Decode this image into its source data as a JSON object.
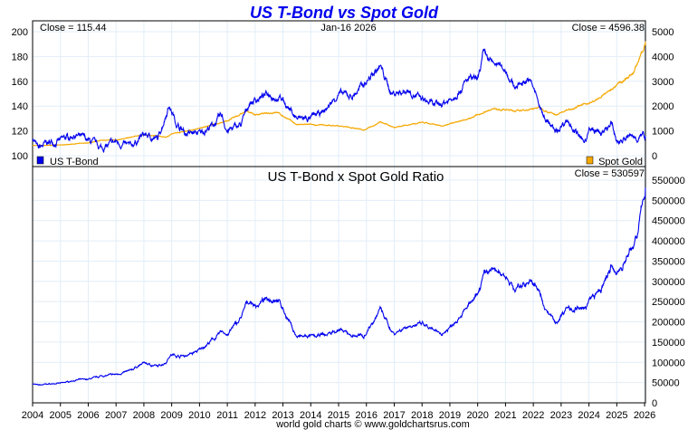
{
  "chart_data": [
    {
      "type": "line",
      "title": "US T-Bond vs Spot Gold",
      "date_label": "Jan-16  2026",
      "left_close": "Close = 115.44",
      "right_close": "Close = 4596.38",
      "left_ticks": [
        "100",
        "120",
        "140",
        "160",
        "180",
        "200"
      ],
      "right_ticks": [
        "0",
        "1000",
        "2000",
        "3000",
        "4000",
        "5000"
      ],
      "ylim_left": [
        100,
        200
      ],
      "ylim_right": [
        0,
        5000
      ],
      "series": [
        {
          "name": "US T-Bond",
          "color": "#0000ee",
          "axis": "left",
          "x": [
            2004.0,
            2004.2,
            2004.5,
            2005.0,
            2005.5,
            2006.0,
            2006.5,
            2007.0,
            2007.5,
            2008.0,
            2008.5,
            2008.9,
            2009.2,
            2009.5,
            2010.0,
            2010.5,
            2010.8,
            2011.0,
            2011.5,
            2011.8,
            2012.5,
            2013.0,
            2013.5,
            2014.0,
            2014.5,
            2015.0,
            2015.5,
            2016.0,
            2016.5,
            2016.9,
            2017.5,
            2018.0,
            2018.5,
            2019.0,
            2019.7,
            2020.0,
            2020.2,
            2020.5,
            2021.0,
            2021.3,
            2021.8,
            2022.0,
            2022.3,
            2022.8,
            2023.2,
            2023.8,
            2024.0,
            2024.5,
            2024.8,
            2025.0,
            2025.5,
            2026.05
          ],
          "values": [
            115,
            105,
            110,
            112,
            117,
            112,
            106,
            111,
            107,
            117,
            113,
            141,
            125,
            118,
            118,
            125,
            132,
            120,
            125,
            143,
            150,
            145,
            130,
            130,
            136,
            150,
            148,
            160,
            172,
            150,
            153,
            145,
            140,
            145,
            162,
            160,
            182,
            175,
            170,
            155,
            162,
            155,
            135,
            118,
            130,
            110,
            120,
            118,
            125,
            112,
            115,
            115.44
          ]
        },
        {
          "name": "Spot Gold",
          "color": "#f5a800",
          "axis": "right",
          "x": [
            2004.0,
            2005.0,
            2006.0,
            2006.5,
            2007.0,
            2008.0,
            2008.8,
            2009.0,
            2010.0,
            2011.0,
            2011.7,
            2012.0,
            2012.8,
            2013.5,
            2014.0,
            2015.0,
            2015.9,
            2016.5,
            2017.0,
            2018.0,
            2018.7,
            2019.0,
            2019.7,
            2020.5,
            2021.0,
            2021.5,
            2022.2,
            2022.8,
            2023.5,
            2024.2,
            2024.8,
            2025.2,
            2025.6,
            2025.9,
            2026.05
          ],
          "values": [
            410,
            430,
            520,
            630,
            630,
            850,
            750,
            880,
            1100,
            1400,
            1800,
            1650,
            1750,
            1250,
            1250,
            1200,
            1050,
            1350,
            1150,
            1330,
            1200,
            1290,
            1500,
            1900,
            1850,
            1800,
            1950,
            1650,
            1950,
            2200,
            2650,
            3000,
            3350,
            4100,
            4596.38
          ]
        }
      ]
    },
    {
      "type": "line",
      "title": "US T-Bond  x  Spot Gold Ratio",
      "close": "Close = 530597",
      "right_ticks": [
        "0",
        "50000",
        "100000",
        "150000",
        "200000",
        "250000",
        "300000",
        "350000",
        "400000",
        "450000",
        "500000",
        "550000"
      ],
      "ylim": [
        0,
        550000
      ],
      "series": [
        {
          "name": "Ratio",
          "color": "#0000ee",
          "derived": "US T-Bond x Spot Gold"
        }
      ]
    }
  ],
  "x_ticks": [
    "2004",
    "2005",
    "2006",
    "2007",
    "2008",
    "2009",
    "2010",
    "2011",
    "2012",
    "2013",
    "2014",
    "2015",
    "2016",
    "2017",
    "2018",
    "2019",
    "2020",
    "2021",
    "2022",
    "2023",
    "2024",
    "2025",
    "2026"
  ],
  "footer": "world gold charts © www.goldchartsrus.com"
}
